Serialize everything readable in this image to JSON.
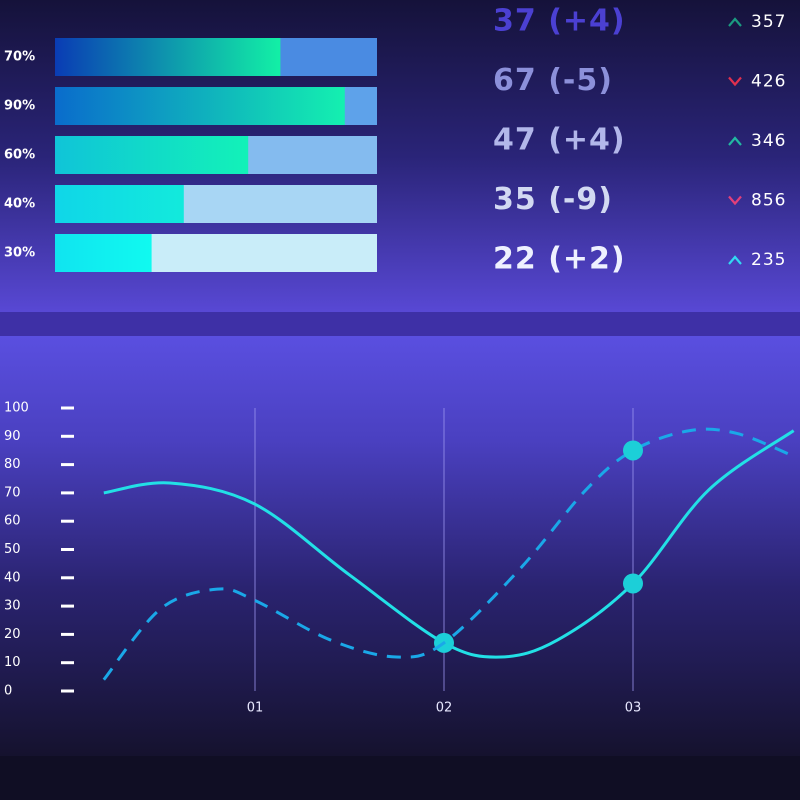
{
  "chart_data": [
    {
      "type": "progress",
      "values": [
        70,
        90,
        60,
        40,
        30
      ],
      "value_labels": [
        "70%",
        "90%",
        "60%",
        "40%",
        "30%"
      ],
      "xlim": [
        0,
        100
      ],
      "colors": [
        [
          "#0a3cb4",
          "#12f0a6"
        ],
        [
          "#0a6ccc",
          "#14f0b0"
        ],
        [
          "#10c4d8",
          "#12f2b8"
        ],
        [
          "#10d6e8",
          "#12eadc"
        ],
        [
          "#10e4f0",
          "#10faf0"
        ]
      ],
      "track_colors": [
        "#4a8be2",
        "#5ea2ea",
        "#84bbef",
        "#a8d6f4",
        "#c9edf9"
      ]
    },
    {
      "type": "line",
      "xlim": [
        0.2,
        3.85
      ],
      "ylim": [
        0,
        100
      ],
      "xticks": [
        {
          "value": 1,
          "label": "01"
        },
        {
          "value": 2,
          "label": "02"
        },
        {
          "value": 3,
          "label": "03"
        }
      ],
      "yticks": [
        0,
        10,
        20,
        30,
        40,
        50,
        60,
        70,
        80,
        90,
        100
      ],
      "series": [
        {
          "style": "solid",
          "color": "#22e0e6",
          "x": [
            0.2,
            0.55,
            1,
            1.5,
            2,
            2.3,
            2.6,
            3,
            3.4,
            3.85
          ],
          "values": [
            70,
            73.5,
            66,
            41,
            17,
            12,
            18,
            38,
            71,
            92
          ],
          "markers": [
            4,
            7
          ]
        },
        {
          "style": "dashed",
          "color": "#1aa8e8",
          "x": [
            0.2,
            0.5,
            0.8,
            1,
            1.4,
            1.75,
            2,
            2.4,
            2.75,
            3,
            3.3,
            3.55,
            3.85
          ],
          "values": [
            4,
            29,
            36,
            32,
            18,
            12,
            17,
            43,
            71,
            85,
            92,
            91,
            83
          ],
          "markers": [
            9
          ]
        }
      ]
    }
  ],
  "stats": [
    {
      "score": "37 (+4)",
      "count": "357",
      "trend": "up",
      "color": "#4b40d2",
      "arrow_color": "#1b9a80"
    },
    {
      "score": "67 (-5)",
      "count": "426",
      "trend": "down",
      "color": "#8c90da",
      "arrow_color": "#e0304e"
    },
    {
      "score": "47 (+4)",
      "count": "346",
      "trend": "up",
      "color": "#b2b7ea",
      "arrow_color": "#22b8a2"
    },
    {
      "score": "35 (-9)",
      "count": "856",
      "trend": "down",
      "color": "#d2d9f2",
      "arrow_color": "#e2407a"
    },
    {
      "score": "22 (+2)",
      "count": "235",
      "trend": "up",
      "color": "#eef1ff",
      "arrow_color": "#32d8f2"
    }
  ]
}
